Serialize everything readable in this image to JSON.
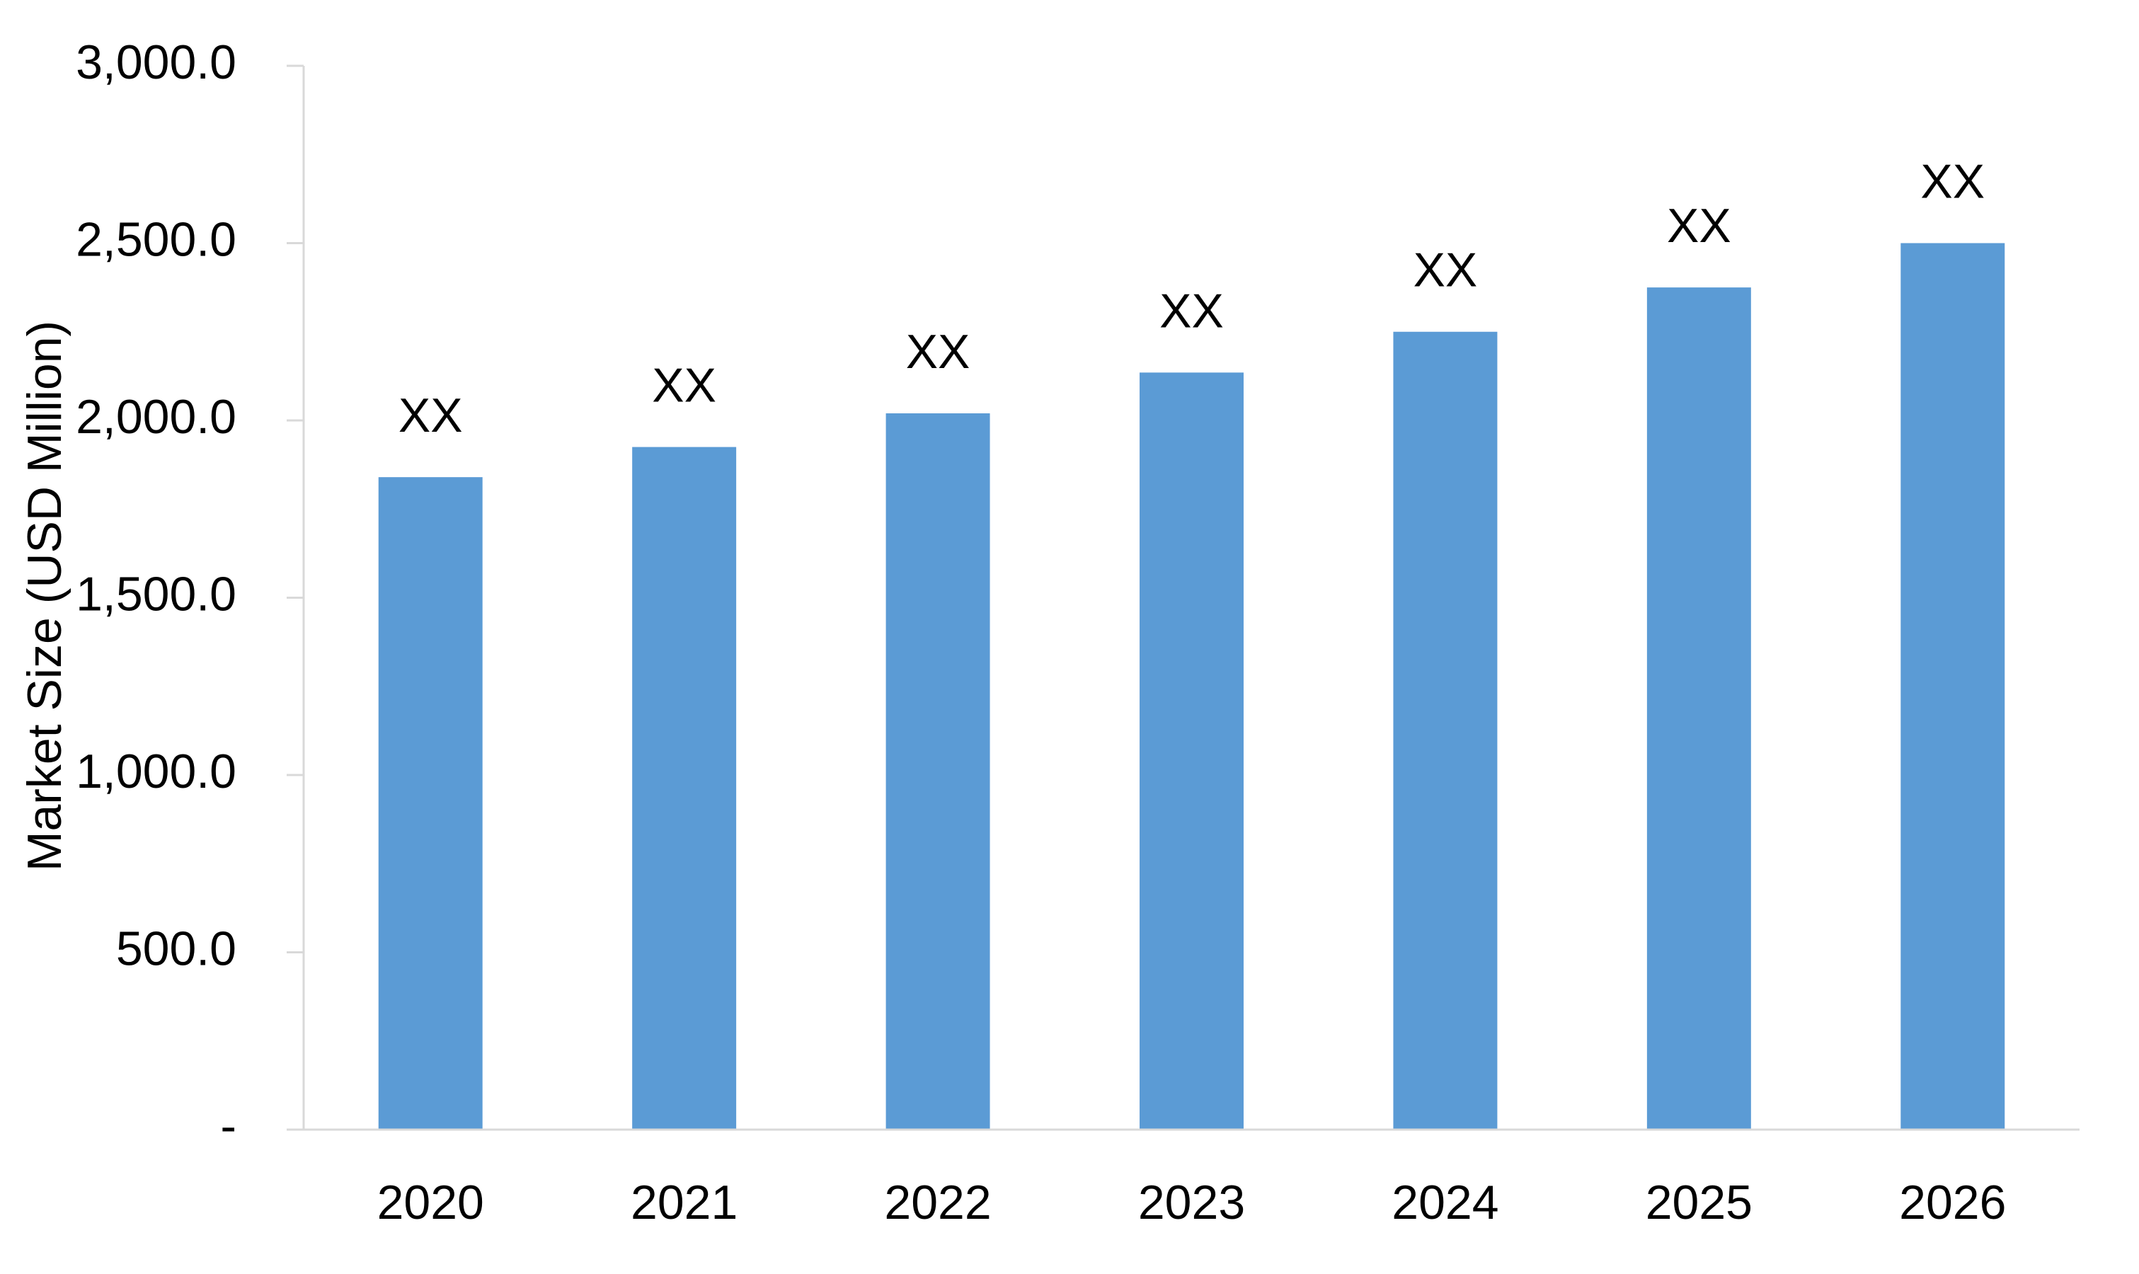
{
  "chart_data": {
    "type": "bar",
    "y_label": "Market Size (USD Million)",
    "categories": [
      "2020",
      "2021",
      "2022",
      "2023",
      "2024",
      "2025",
      "2026"
    ],
    "values": [
      1840,
      1925,
      2020,
      2135,
      2250,
      2375,
      2500
    ],
    "value_labels": [
      "XX",
      "XX",
      "XX",
      "XX",
      "XX",
      "XX",
      "XX"
    ],
    "color": "#5b9bd5",
    "ylim": [
      0,
      3000
    ],
    "yticks": [
      {
        "value": 0,
        "label": "-"
      },
      {
        "value": 500,
        "label": "500.0"
      },
      {
        "value": 1000,
        "label": "1,000.0"
      },
      {
        "value": 1500,
        "label": "1,500.0"
      },
      {
        "value": 2000,
        "label": "2,000.0"
      },
      {
        "value": 2500,
        "label": "2,500.0"
      },
      {
        "value": 3000,
        "label": "3,000.0"
      }
    ],
    "grid": false
  }
}
